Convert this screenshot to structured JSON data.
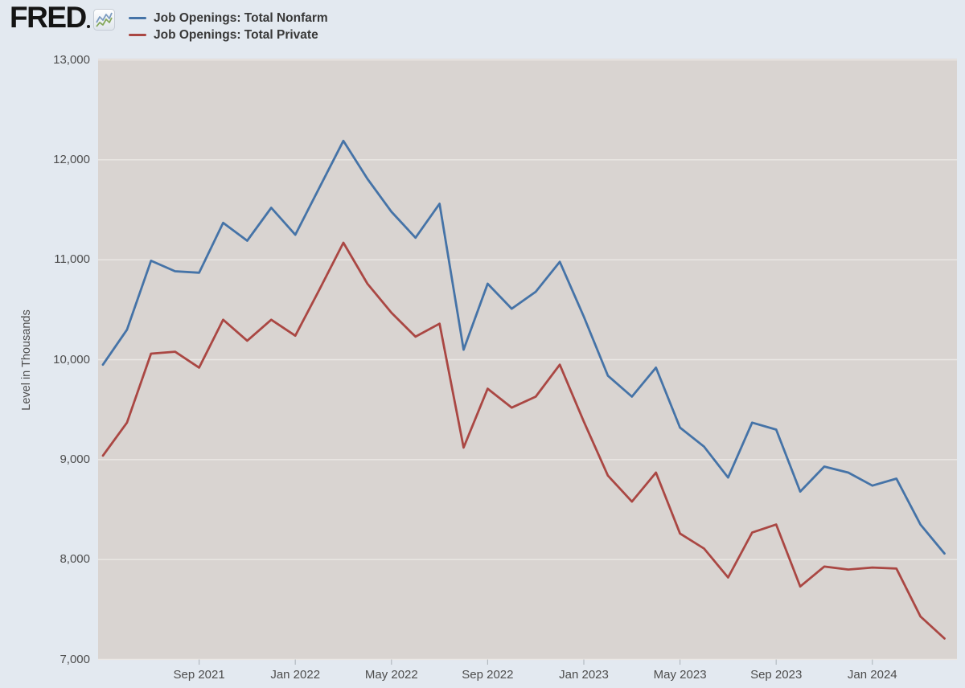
{
  "header": {
    "logo_text": "FRED",
    "legend": [
      {
        "label": "Job Openings: Total Nonfarm",
        "color": "#4573a7"
      },
      {
        "label": "Job Openings: Total Private",
        "color": "#aa4743"
      }
    ]
  },
  "colors": {
    "outer_background": "#e3e9f0",
    "plot_background": "#d9d4d1",
    "gridline": "#ebe8e5",
    "tick_mark": "#b3bac1",
    "axis_text": "#4d4d4d",
    "nonfarm_line": "#4573a7",
    "private_line": "#aa4743"
  },
  "chart_data": {
    "type": "line",
    "title": "",
    "xlabel": "",
    "ylabel": "Level in Thousands",
    "ylim": [
      7000,
      13000
    ],
    "grid": true,
    "legend_position": "top-left",
    "y_ticks": [
      7000,
      8000,
      9000,
      10000,
      11000,
      12000,
      13000
    ],
    "y_tick_labels": [
      "7,000",
      "8,000",
      "9,000",
      "10,000",
      "11,000",
      "12,000",
      "13,000"
    ],
    "x_tick_indices": [
      4,
      8,
      12,
      16,
      20,
      24,
      28,
      32
    ],
    "x_tick_labels": [
      "Sep 2021",
      "Jan 2022",
      "May 2022",
      "Sep 2022",
      "Jan 2023",
      "May 2023",
      "Sep 2023",
      "Jan 2024"
    ],
    "months": [
      "May 2021",
      "Jun 2021",
      "Jul 2021",
      "Aug 2021",
      "Sep 2021",
      "Oct 2021",
      "Nov 2021",
      "Dec 2021",
      "Jan 2022",
      "Feb 2022",
      "Mar 2022",
      "Apr 2022",
      "May 2022",
      "Jun 2022",
      "Jul 2022",
      "Aug 2022",
      "Sep 2022",
      "Oct 2022",
      "Nov 2022",
      "Dec 2022",
      "Jan 2023",
      "Feb 2023",
      "Mar 2023",
      "Apr 2023",
      "May 2023",
      "Jun 2023",
      "Jul 2023",
      "Aug 2023",
      "Sep 2023",
      "Oct 2023",
      "Nov 2023",
      "Dec 2023",
      "Jan 2024",
      "Feb 2024",
      "Mar 2024",
      "Apr 2024"
    ],
    "series": [
      {
        "name": "Job Openings: Total Nonfarm",
        "color": "#4573a7",
        "values": [
          9950,
          10300,
          10990,
          10885,
          10870,
          11370,
          11190,
          11520,
          11250,
          11720,
          12190,
          11810,
          11480,
          11220,
          11560,
          10100,
          10760,
          10510,
          10680,
          10980,
          10430,
          9840,
          9630,
          9920,
          9320,
          9130,
          8820,
          9370,
          9300,
          8680,
          8930,
          8870,
          8740,
          8810,
          8350,
          8060
        ]
      },
      {
        "name": "Job Openings: Total Private",
        "color": "#aa4743",
        "values": [
          9040,
          9370,
          10060,
          10080,
          9920,
          10400,
          10190,
          10400,
          10240,
          10700,
          11170,
          10760,
          10470,
          10230,
          10360,
          9120,
          9710,
          9520,
          9630,
          9950,
          9380,
          8840,
          8580,
          8870,
          8260,
          8110,
          7820,
          8270,
          8350,
          7730,
          7930,
          7900,
          7920,
          7910,
          7430,
          7210
        ]
      }
    ]
  }
}
